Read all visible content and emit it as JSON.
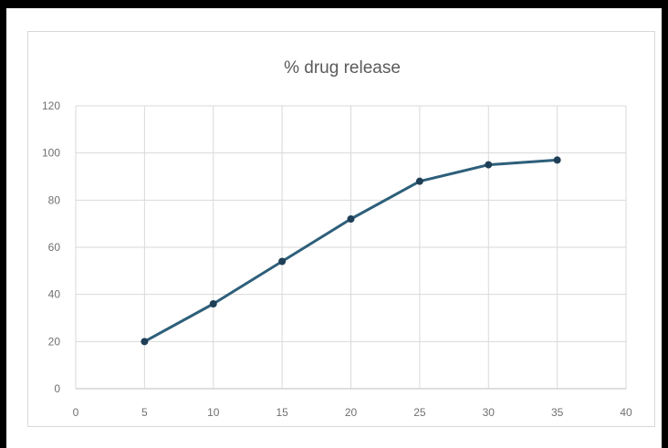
{
  "chart_data": {
    "type": "line",
    "title": "% drug release",
    "x": [
      5,
      10,
      15,
      20,
      25,
      30,
      35
    ],
    "series": [
      {
        "values": [
          20,
          36,
          54,
          72,
          88,
          95,
          97
        ]
      }
    ],
    "xlim": [
      0,
      40
    ],
    "ylim": [
      0,
      120
    ],
    "xticks": [
      "0",
      "5",
      "10",
      "15",
      "20",
      "25",
      "30",
      "35",
      "40"
    ],
    "yticks": [
      "0",
      "20",
      "40",
      "60",
      "80",
      "100",
      "120"
    ],
    "grid": true,
    "line_color": "#2e5f7a",
    "marker_color": "#1f3f57"
  }
}
